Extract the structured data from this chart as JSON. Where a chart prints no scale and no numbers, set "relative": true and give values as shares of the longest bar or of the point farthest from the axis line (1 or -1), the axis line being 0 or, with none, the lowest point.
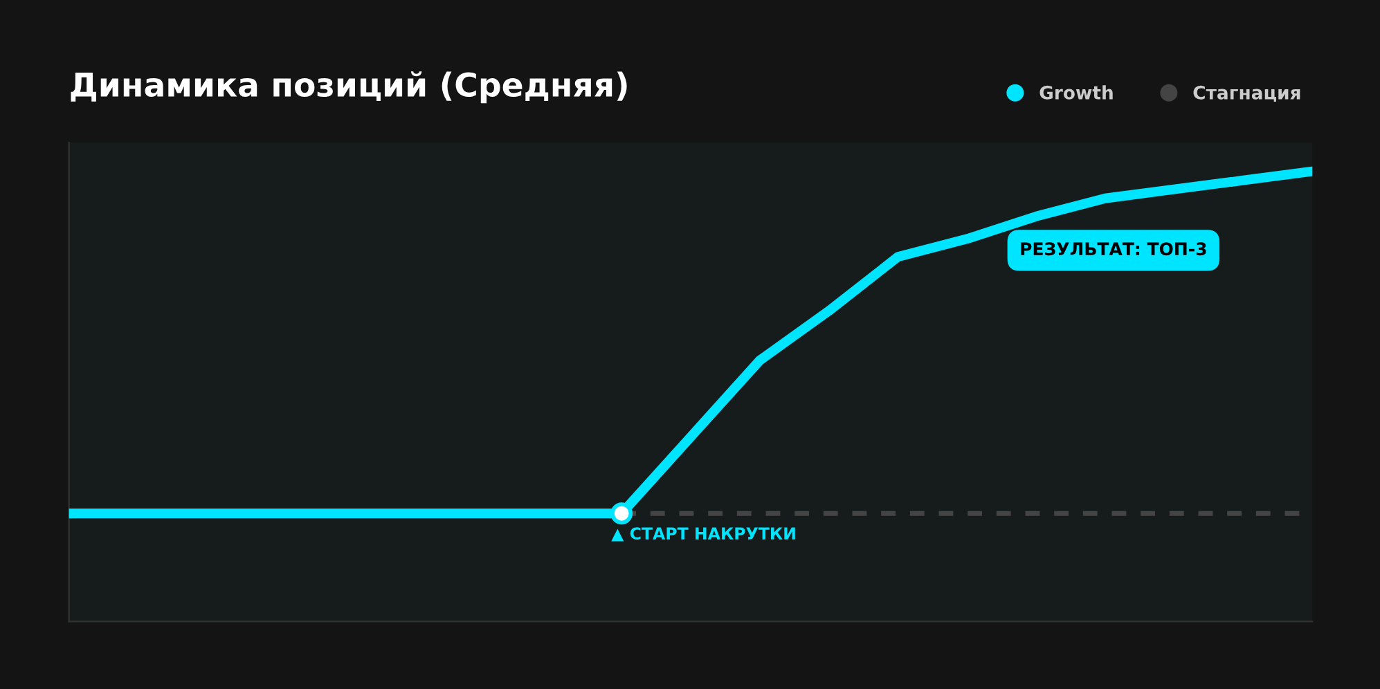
{
  "chart_data": {
    "type": "line",
    "title": "Динамика позиций (Средняя)",
    "relative": true,
    "categories": [
      null,
      null,
      null,
      null,
      null,
      null,
      null,
      null,
      null,
      null,
      null,
      null,
      null,
      null,
      null,
      null,
      null,
      null,
      null
    ],
    "series": [
      {
        "name": "Growth",
        "color": "#00e5ff",
        "line_style": "solid",
        "values": [
          0.24,
          0.24,
          0.24,
          0.24,
          0.24,
          0.24,
          0.24,
          0.24,
          0.24,
          0.41,
          0.58,
          0.69,
          0.81,
          0.85,
          0.9,
          0.94,
          0.96,
          0.98,
          1.0
        ]
      },
      {
        "name": "Стагнация",
        "color": "#444444",
        "line_style": "dashed",
        "values": [
          null,
          null,
          null,
          null,
          null,
          null,
          null,
          null,
          0.24,
          0.24,
          0.24,
          0.24,
          0.24,
          0.24,
          0.24,
          0.24,
          0.24,
          0.24,
          0.24
        ]
      }
    ],
    "annotations": [
      "▲ СТАРТ НАКРУТКИ",
      "РЕЗУЛЬТАТ: ТОП-3"
    ],
    "legend": "top right",
    "grid": false
  }
}
